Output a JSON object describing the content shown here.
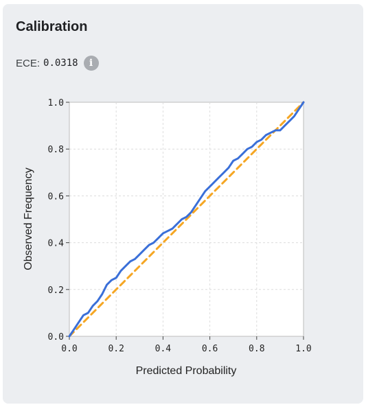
{
  "card": {
    "title": "Calibration",
    "ece_label": "ECE:",
    "ece_value": "0.0318",
    "info_icon": "info-icon",
    "info_glyph": "i"
  },
  "chart_data": {
    "type": "line",
    "title": "",
    "xlabel": "Predicted Probability",
    "ylabel": "Observed Frequency",
    "xlim": [
      0,
      1
    ],
    "ylim": [
      0,
      1
    ],
    "xticks": [
      "0.0",
      "0.2",
      "0.4",
      "0.6",
      "0.8",
      "1.0"
    ],
    "yticks": [
      "0.0",
      "0.2",
      "0.4",
      "0.6",
      "0.8",
      "1.0"
    ],
    "grid": true,
    "series": [
      {
        "color": "#3a6fd8",
        "style": "solid",
        "x": [
          0.0,
          0.02,
          0.04,
          0.06,
          0.08,
          0.1,
          0.12,
          0.14,
          0.16,
          0.18,
          0.2,
          0.22,
          0.24,
          0.26,
          0.28,
          0.3,
          0.32,
          0.34,
          0.36,
          0.38,
          0.4,
          0.42,
          0.44,
          0.46,
          0.48,
          0.5,
          0.52,
          0.54,
          0.56,
          0.58,
          0.6,
          0.62,
          0.64,
          0.66,
          0.68,
          0.7,
          0.72,
          0.74,
          0.76,
          0.78,
          0.8,
          0.82,
          0.84,
          0.86,
          0.88,
          0.9,
          0.92,
          0.94,
          0.96,
          0.98,
          1.0
        ],
        "y": [
          0.0,
          0.03,
          0.06,
          0.09,
          0.1,
          0.13,
          0.15,
          0.18,
          0.22,
          0.24,
          0.25,
          0.28,
          0.3,
          0.32,
          0.33,
          0.35,
          0.37,
          0.39,
          0.4,
          0.42,
          0.44,
          0.45,
          0.46,
          0.48,
          0.5,
          0.51,
          0.53,
          0.56,
          0.59,
          0.62,
          0.64,
          0.66,
          0.68,
          0.7,
          0.72,
          0.75,
          0.76,
          0.78,
          0.8,
          0.81,
          0.83,
          0.84,
          0.86,
          0.87,
          0.88,
          0.88,
          0.9,
          0.92,
          0.94,
          0.97,
          1.0
        ]
      },
      {
        "color": "#f5a623",
        "style": "dashed",
        "x": [
          0.0,
          1.0
        ],
        "y": [
          0.0,
          1.0
        ]
      }
    ]
  }
}
